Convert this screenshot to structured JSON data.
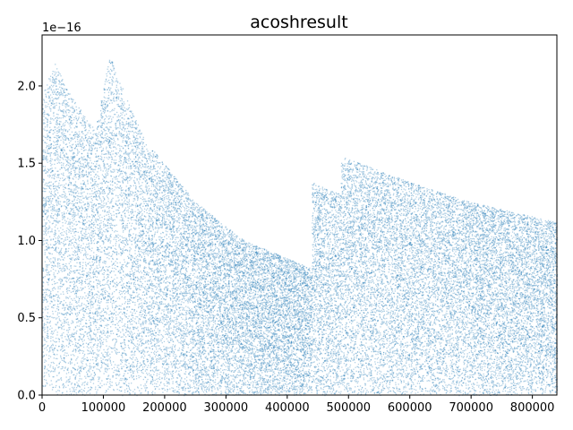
{
  "chart_data": {
    "type": "scatter",
    "title": "acoshresult",
    "xlabel": "",
    "ylabel": "",
    "y_offset_label": "1e−16",
    "xlim": [
      0,
      840000
    ],
    "ylim": [
      0,
      2.33e-16
    ],
    "x_ticks": [
      {
        "value": 0,
        "label": "0"
      },
      {
        "value": 100000,
        "label": "100000"
      },
      {
        "value": 200000,
        "label": "200000"
      },
      {
        "value": 300000,
        "label": "300000"
      },
      {
        "value": 400000,
        "label": "400000"
      },
      {
        "value": 500000,
        "label": "500000"
      },
      {
        "value": 600000,
        "label": "600000"
      },
      {
        "value": 700000,
        "label": "700000"
      },
      {
        "value": 800000,
        "label": "800000"
      }
    ],
    "y_ticks": [
      {
        "value": 0,
        "label": "0.0"
      },
      {
        "value": 5e-17,
        "label": "0.5"
      },
      {
        "value": 1e-16,
        "label": "1.0"
      },
      {
        "value": 1.5e-16,
        "label": "1.5"
      },
      {
        "value": 2e-16,
        "label": "2.0"
      }
    ],
    "grid": false,
    "legend": "none",
    "color": "#1f77b4",
    "series": [
      {
        "segments": [
          {
            "x_start": 0,
            "x_end": 88000,
            "upper_envelope": [
              [
                0,
                1.95e-16
              ],
              [
                20000,
                2.15e-16
              ],
              [
                45000,
                1.95e-16
              ],
              [
                88000,
                1.7e-16
              ]
            ]
          },
          {
            "x_start": 88000,
            "x_end": 178000,
            "upper_envelope": [
              [
                88000,
                1.75e-16
              ],
              [
                110000,
                2.2e-16
              ],
              [
                140000,
                1.9e-16
              ],
              [
                178000,
                1.55e-16
              ]
            ]
          },
          {
            "x_start": 178000,
            "x_end": 440000,
            "upper_envelope": [
              [
                178000,
                1.6e-16
              ],
              [
                250000,
                1.25e-16
              ],
              [
                330000,
                1e-16
              ],
              [
                440000,
                8.2e-17
              ]
            ]
          },
          {
            "x_start": 440000,
            "x_end": 487000,
            "upper_envelope": [
              [
                440000,
                1.38e-16
              ],
              [
                487000,
                1.3e-16
              ]
            ]
          },
          {
            "x_start": 487000,
            "x_end": 840000,
            "upper_envelope": [
              [
                487000,
                1.55e-16
              ],
              [
                600000,
                1.38e-16
              ],
              [
                700000,
                1.25e-16
              ],
              [
                840000,
                1.12e-16
              ]
            ]
          }
        ]
      }
    ]
  }
}
